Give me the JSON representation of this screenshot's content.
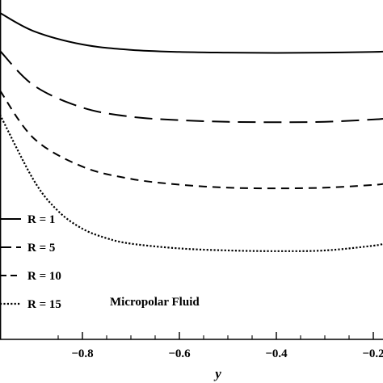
{
  "chart_data": {
    "type": "line",
    "xlabel": "y",
    "ylabel": "",
    "xlim": [
      -0.97,
      -0.18
    ],
    "ylim": [
      0,
      1
    ],
    "x_ticks": [
      -0.8,
      -0.6,
      -0.4,
      -0.2
    ],
    "x_tick_labels": [
      "−0.8",
      "−0.6",
      "−0.4",
      "−0.2"
    ],
    "grid": false,
    "legend_position": "lower-left",
    "annotation": "Micropolar Fluid",
    "series": [
      {
        "name": "R = 1",
        "dash": "solid",
        "x": [
          -0.97,
          -0.9,
          -0.8,
          -0.7,
          -0.6,
          -0.5,
          -0.4,
          -0.3,
          -0.2,
          -0.18
        ],
        "y": [
          0.962,
          0.908,
          0.869,
          0.853,
          0.847,
          0.845,
          0.844,
          0.845,
          0.847,
          0.848
        ]
      },
      {
        "name": "R = 5",
        "dash": "long-dash",
        "x": [
          -0.97,
          -0.9,
          -0.8,
          -0.7,
          -0.6,
          -0.5,
          -0.4,
          -0.3,
          -0.2,
          -0.18
        ],
        "y": [
          0.85,
          0.748,
          0.683,
          0.656,
          0.646,
          0.641,
          0.64,
          0.641,
          0.648,
          0.65
        ]
      },
      {
        "name": "R = 10",
        "dash": "medium-dash",
        "x": [
          -0.97,
          -0.9,
          -0.8,
          -0.7,
          -0.6,
          -0.5,
          -0.4,
          -0.3,
          -0.2,
          -0.18
        ],
        "y": [
          0.733,
          0.592,
          0.509,
          0.473,
          0.456,
          0.447,
          0.445,
          0.447,
          0.455,
          0.458
        ]
      },
      {
        "name": "R = 15",
        "dash": "dotted",
        "x": [
          -0.97,
          -0.9,
          -0.85,
          -0.8,
          -0.75,
          -0.7,
          -0.6,
          -0.5,
          -0.4,
          -0.3,
          -0.2,
          -0.18
        ],
        "y": [
          0.662,
          0.468,
          0.378,
          0.326,
          0.298,
          0.282,
          0.268,
          0.262,
          0.26,
          0.262,
          0.276,
          0.282
        ]
      }
    ]
  }
}
